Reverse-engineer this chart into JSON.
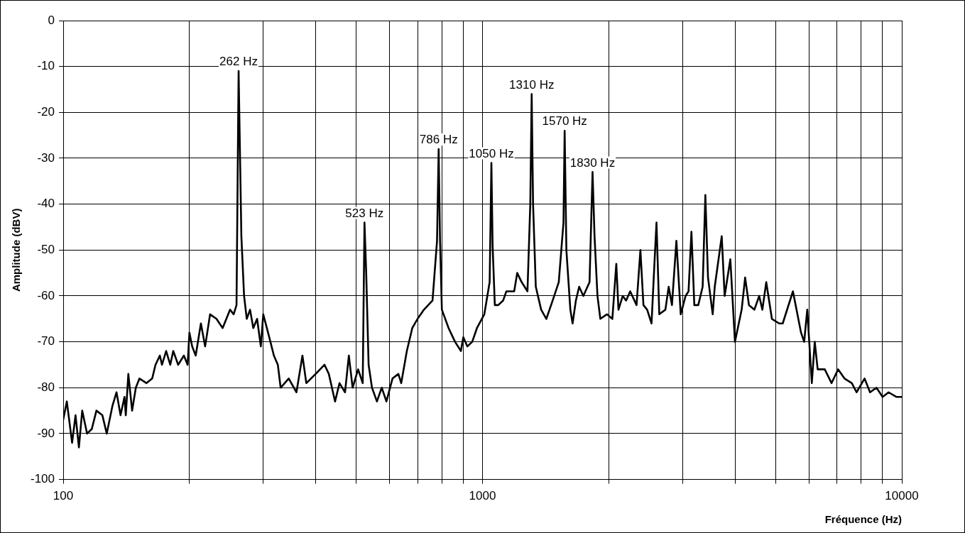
{
  "chart_data": {
    "type": "line",
    "xlabel": "Fréquence (Hz)",
    "ylabel": "Amplitude (dBV)",
    "log": "x",
    "grid": true,
    "legend": false,
    "marker": "none",
    "line_style": "solid",
    "xlim": [
      100,
      10000
    ],
    "xticks": [
      100,
      {
        "value": 200,
        "label": null
      },
      {
        "value": 300,
        "label": null
      },
      {
        "value": 400,
        "label": null
      },
      {
        "value": 500,
        "label": null
      },
      {
        "value": 600,
        "label": null
      },
      {
        "value": 700,
        "label": null
      },
      {
        "value": 800,
        "label": null
      },
      {
        "value": 900,
        "label": null
      },
      1000,
      {
        "value": 2000,
        "label": null
      },
      {
        "value": 3000,
        "label": null
      },
      {
        "value": 4000,
        "label": null
      },
      {
        "value": 5000,
        "label": null
      },
      {
        "value": 6000,
        "label": null
      },
      {
        "value": 7000,
        "label": null
      },
      {
        "value": 8000,
        "label": null
      },
      {
        "value": 9000,
        "label": null
      },
      10000
    ],
    "ylim": [
      -100,
      0
    ],
    "yticks": [
      -100,
      -90,
      -80,
      -70,
      -60,
      -50,
      -40,
      -30,
      -20,
      -10,
      0
    ],
    "annotations": [
      {
        "text": "262 Hz",
        "x": 262,
        "y": -11
      },
      {
        "text": "523 Hz",
        "x": 523,
        "y": -44
      },
      {
        "text": "786 Hz",
        "x": 786,
        "y": -28
      },
      {
        "text": "1050 Hz",
        "x": 1050,
        "y": -31
      },
      {
        "text": "1310 Hz",
        "x": 1310,
        "y": -16
      },
      {
        "text": "1570 Hz",
        "x": 1570,
        "y": -24
      },
      {
        "text": "1830 Hz",
        "x": 1830,
        "y": -33
      }
    ],
    "series": [
      {
        "color": "#000000",
        "x": [
          100,
          102,
          105,
          107,
          109,
          111,
          114,
          117,
          120,
          124,
          127,
          131,
          134,
          137,
          140,
          141,
          143,
          146,
          149,
          152,
          158,
          163,
          166,
          170,
          172,
          176,
          180,
          183,
          188,
          194,
          198,
          200,
          203,
          207,
          213,
          218,
          224,
          232,
          240,
          250,
          255,
          259,
          262,
          266,
          270,
          274,
          279,
          284,
          290,
          296,
          300,
          310,
          318,
          325,
          330,
          345,
          360,
          372,
          380,
          400,
          420,
          430,
          445,
          456,
          470,
          480,
          490,
          505,
          518,
          523,
          528,
          535,
          545,
          560,
          575,
          590,
          610,
          630,
          640,
          660,
          680,
          700,
          725,
          760,
          779,
          786,
          792,
          800,
          830,
          860,
          888,
          900,
          920,
          945,
          970,
          1010,
          1040,
          1050,
          1057,
          1070,
          1090,
          1120,
          1140,
          1190,
          1210,
          1240,
          1280,
          1300,
          1310,
          1320,
          1340,
          1380,
          1420,
          1470,
          1520,
          1560,
          1570,
          1585,
          1620,
          1640,
          1670,
          1700,
          1740,
          1800,
          1830,
          1850,
          1880,
          1910,
          1980,
          2040,
          2085,
          2110,
          2160,
          2200,
          2250,
          2330,
          2380,
          2420,
          2470,
          2530,
          2580,
          2600,
          2640,
          2730,
          2780,
          2830,
          2900,
          2970,
          3050,
          3100,
          3150,
          3200,
          3270,
          3350,
          3400,
          3450,
          3540,
          3580,
          3720,
          3780,
          3900,
          4000,
          4150,
          4230,
          4320,
          4450,
          4570,
          4650,
          4750,
          4900,
          5100,
          5200,
          5500,
          5750,
          5850,
          5950,
          6100,
          6200,
          6300,
          6550,
          6800,
          7050,
          7300,
          7600,
          7800,
          8150,
          8400,
          8700,
          9000,
          9300,
          9700,
          10000
        ],
        "values": [
          -87,
          -83,
          -92,
          -86,
          -93,
          -85,
          -90,
          -89,
          -85,
          -86,
          -90,
          -84,
          -81,
          -86,
          -82,
          -86,
          -77,
          -85,
          -80,
          -78,
          -79,
          -78,
          -75,
          -73,
          -75,
          -72,
          -75,
          -72,
          -75,
          -73,
          -75,
          -68,
          -71,
          -73,
          -66,
          -71,
          -64,
          -65,
          -67,
          -63,
          -64,
          -62,
          -11,
          -47,
          -60,
          -65,
          -63,
          -67,
          -65,
          -71,
          -64,
          -69,
          -73,
          -75,
          -80,
          -78,
          -81,
          -73,
          -79,
          -77,
          -75,
          -77,
          -83,
          -79,
          -81,
          -73,
          -80,
          -76,
          -79,
          -44,
          -55,
          -75,
          -80,
          -83,
          -80,
          -83,
          -78,
          -77,
          -79,
          -72,
          -67,
          -65,
          -63,
          -61,
          -48,
          -28,
          -48,
          -63,
          -67,
          -70,
          -72,
          -69,
          -71,
          -70,
          -67,
          -64,
          -57,
          -31,
          -49,
          -62,
          -62,
          -61,
          -59,
          -59,
          -55,
          -57,
          -59,
          -40,
          -16,
          -40,
          -58,
          -63,
          -65,
          -61,
          -57,
          -44,
          -24,
          -50,
          -63,
          -66,
          -61,
          -58,
          -60,
          -57,
          -33,
          -47,
          -60,
          -65,
          -64,
          -65,
          -53,
          -63,
          -60,
          -61,
          -59,
          -62,
          -50,
          -62,
          -63,
          -66,
          -50,
          -44,
          -64,
          -63,
          -58,
          -62,
          -48,
          -64,
          -60,
          -59,
          -46,
          -62,
          -62,
          -58,
          -38,
          -56,
          -64,
          -58,
          -47,
          -60,
          -52,
          -70,
          -63,
          -56,
          -62,
          -63,
          -60,
          -63,
          -57,
          -65,
          -66,
          -66,
          -59,
          -68,
          -70,
          -63,
          -79,
          -70,
          -76,
          -76,
          -79,
          -76,
          -78,
          -79,
          -81,
          -78,
          -81,
          -80,
          -82,
          -81,
          -82,
          -82
        ]
      }
    ]
  }
}
